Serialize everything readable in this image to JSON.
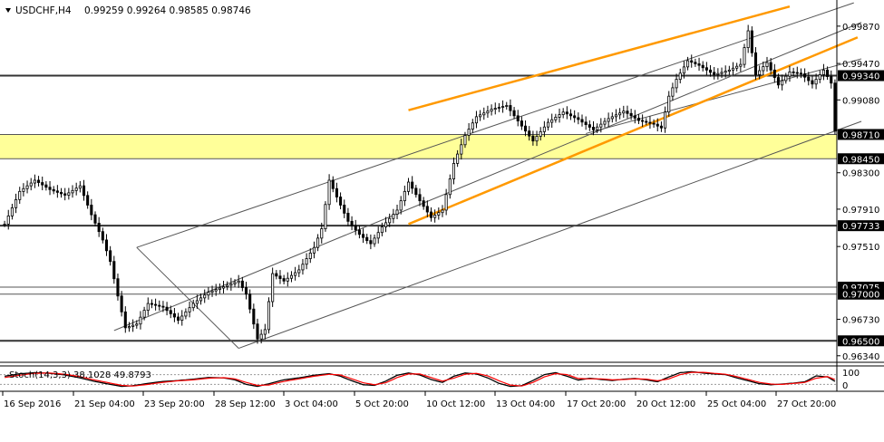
{
  "header": {
    "dropdown_icon": "triangle-down-icon",
    "title": "USDCHF,H4",
    "ohlc": "0.99259 0.99264 0.98585 0.98746"
  },
  "indicator": {
    "title": "Stoch(14,3,3) 38.1028 49.8793",
    "levels": [
      "100",
      "0"
    ],
    "colors": {
      "main": "#000000",
      "signal": "#ff0000"
    }
  },
  "colors": {
    "accent_channel": "#ff9900",
    "zone_fill": "#ffff99",
    "bull_candle": "#ffffff",
    "bear_candle": "#000000",
    "level_line": "#333333"
  },
  "chart_data": {
    "type": "candlestick",
    "symbol": "USDCHF",
    "timeframe": "H4",
    "ylim": [
      0.9627,
      1.0015
    ],
    "y_ticks": [
      {
        "label": "0.99870",
        "value": 0.9987
      },
      {
        "label": "0.99470",
        "value": 0.9947
      },
      {
        "label": "0.99080",
        "value": 0.9908
      },
      {
        "label": "0.98300",
        "value": 0.983
      },
      {
        "label": "0.97910",
        "value": 0.9791
      },
      {
        "label": "0.97510",
        "value": 0.9751
      },
      {
        "label": "0.96730",
        "value": 0.9673
      },
      {
        "label": "0.96340",
        "value": 0.9634
      }
    ],
    "x_ticks": [
      "16 Sep 2016",
      "21 Sep 04:00",
      "23 Sep 20:00",
      "28 Sep 12:00",
      "3 Oct 04:00",
      "5 Oct 20:00",
      "10 Oct 12:00",
      "13 Oct 04:00",
      "17 Oct 20:00",
      "20 Oct 12:00",
      "25 Oct 04:00",
      "27 Oct 20:00"
    ],
    "horizontal_levels": [
      {
        "label": "0.99340",
        "value": 0.9934,
        "weight": "thick"
      },
      {
        "label": "0.98710",
        "value": 0.9871,
        "weight": "thin"
      },
      {
        "label": "0.98450",
        "value": 0.9845,
        "weight": "thin"
      },
      {
        "label": "0.97733",
        "value": 0.97733,
        "weight": "thick"
      },
      {
        "label": "0.97075",
        "value": 0.97075,
        "weight": "thin"
      },
      {
        "label": "0.97000",
        "value": 0.97,
        "weight": "thin"
      },
      {
        "label": "0.96500",
        "value": 0.965,
        "weight": "thick"
      }
    ],
    "zone": {
      "from": 0.9845,
      "to": 0.9871
    },
    "last_close": 0.98746,
    "price_path": [
      [
        0,
        0.9775
      ],
      [
        4,
        0.981
      ],
      [
        8,
        0.9822
      ],
      [
        12,
        0.9812
      ],
      [
        16,
        0.9806
      ],
      [
        20,
        0.9816
      ],
      [
        23,
        0.9785
      ],
      [
        26,
        0.9758
      ],
      [
        28,
        0.9735
      ],
      [
        30,
        0.9698
      ],
      [
        32,
        0.9664
      ],
      [
        35,
        0.9668
      ],
      [
        38,
        0.969
      ],
      [
        42,
        0.9686
      ],
      [
        46,
        0.9672
      ],
      [
        50,
        0.969
      ],
      [
        54,
        0.9702
      ],
      [
        58,
        0.9708
      ],
      [
        62,
        0.9714
      ],
      [
        64,
        0.97
      ],
      [
        66,
        0.9668
      ],
      [
        67,
        0.9652
      ],
      [
        69,
        0.9662
      ],
      [
        71,
        0.9722
      ],
      [
        74,
        0.9714
      ],
      [
        78,
        0.9726
      ],
      [
        82,
        0.975
      ],
      [
        84,
        0.977
      ],
      [
        86,
        0.9822
      ],
      [
        88,
        0.9804
      ],
      [
        91,
        0.9778
      ],
      [
        94,
        0.9764
      ],
      [
        97,
        0.9754
      ],
      [
        100,
        0.9772
      ],
      [
        104,
        0.979
      ],
      [
        107,
        0.982
      ],
      [
        110,
        0.98
      ],
      [
        113,
        0.9782
      ],
      [
        116,
        0.979
      ],
      [
        119,
        0.984
      ],
      [
        122,
        0.987
      ],
      [
        125,
        0.989
      ],
      [
        129,
        0.9898
      ],
      [
        133,
        0.9902
      ],
      [
        137,
        0.988
      ],
      [
        140,
        0.9864
      ],
      [
        144,
        0.9884
      ],
      [
        148,
        0.9895
      ],
      [
        152,
        0.9887
      ],
      [
        156,
        0.9876
      ],
      [
        160,
        0.9888
      ],
      [
        164,
        0.9896
      ],
      [
        168,
        0.9886
      ],
      [
        172,
        0.9882
      ],
      [
        174,
        0.9878
      ],
      [
        176,
        0.9912
      ],
      [
        178,
        0.993
      ],
      [
        181,
        0.995
      ],
      [
        184,
        0.9945
      ],
      [
        188,
        0.9935
      ],
      [
        192,
        0.994
      ],
      [
        195,
        0.9946
      ],
      [
        197,
        0.9982
      ],
      [
        199,
        0.9935
      ],
      [
        202,
        0.9948
      ],
      [
        205,
        0.9924
      ],
      [
        208,
        0.9938
      ],
      [
        211,
        0.9936
      ],
      [
        214,
        0.9925
      ],
      [
        217,
        0.994
      ],
      [
        219,
        0.9926
      ],
      [
        220,
        0.98746
      ]
    ],
    "stochastic_main": [
      [
        0,
        70
      ],
      [
        4,
        85
      ],
      [
        8,
        92
      ],
      [
        12,
        88
      ],
      [
        16,
        78
      ],
      [
        20,
        60
      ],
      [
        24,
        38
      ],
      [
        28,
        20
      ],
      [
        31,
        8
      ],
      [
        34,
        12
      ],
      [
        38,
        26
      ],
      [
        42,
        38
      ],
      [
        46,
        44
      ],
      [
        50,
        52
      ],
      [
        54,
        62
      ],
      [
        58,
        60
      ],
      [
        61,
        48
      ],
      [
        64,
        20
      ],
      [
        67,
        8
      ],
      [
        70,
        24
      ],
      [
        74,
        48
      ],
      [
        78,
        60
      ],
      [
        82,
        76
      ],
      [
        86,
        86
      ],
      [
        89,
        70
      ],
      [
        92,
        42
      ],
      [
        95,
        18
      ],
      [
        98,
        14
      ],
      [
        101,
        40
      ],
      [
        104,
        76
      ],
      [
        107,
        90
      ],
      [
        110,
        78
      ],
      [
        113,
        50
      ],
      [
        116,
        32
      ],
      [
        119,
        70
      ],
      [
        122,
        90
      ],
      [
        125,
        84
      ],
      [
        128,
        60
      ],
      [
        131,
        26
      ],
      [
        134,
        8
      ],
      [
        137,
        12
      ],
      [
        140,
        44
      ],
      [
        143,
        80
      ],
      [
        146,
        92
      ],
      [
        149,
        70
      ],
      [
        152,
        46
      ],
      [
        155,
        58
      ],
      [
        158,
        50
      ],
      [
        161,
        44
      ],
      [
        164,
        52
      ],
      [
        167,
        56
      ],
      [
        170,
        48
      ],
      [
        173,
        36
      ],
      [
        176,
        66
      ],
      [
        179,
        92
      ],
      [
        182,
        98
      ],
      [
        185,
        90
      ],
      [
        188,
        84
      ],
      [
        191,
        80
      ],
      [
        194,
        60
      ],
      [
        197,
        42
      ],
      [
        200,
        24
      ],
      [
        203,
        18
      ],
      [
        206,
        22
      ],
      [
        209,
        28
      ],
      [
        212,
        36
      ],
      [
        215,
        72
      ],
      [
        218,
        66
      ],
      [
        220,
        38.1
      ]
    ],
    "stochastic_signal": [
      [
        0,
        62
      ],
      [
        4,
        76
      ],
      [
        8,
        88
      ],
      [
        12,
        90
      ],
      [
        16,
        82
      ],
      [
        20,
        68
      ],
      [
        24,
        46
      ],
      [
        28,
        28
      ],
      [
        31,
        14
      ],
      [
        34,
        10
      ],
      [
        38,
        20
      ],
      [
        42,
        33
      ],
      [
        46,
        42
      ],
      [
        50,
        48
      ],
      [
        54,
        58
      ],
      [
        58,
        61
      ],
      [
        61,
        54
      ],
      [
        64,
        32
      ],
      [
        67,
        14
      ],
      [
        70,
        16
      ],
      [
        74,
        38
      ],
      [
        78,
        54
      ],
      [
        82,
        70
      ],
      [
        86,
        82
      ],
      [
        89,
        78
      ],
      [
        92,
        54
      ],
      [
        95,
        30
      ],
      [
        98,
        18
      ],
      [
        101,
        30
      ],
      [
        104,
        62
      ],
      [
        107,
        84
      ],
      [
        110,
        84
      ],
      [
        113,
        62
      ],
      [
        116,
        40
      ],
      [
        119,
        58
      ],
      [
        122,
        82
      ],
      [
        125,
        88
      ],
      [
        128,
        72
      ],
      [
        131,
        42
      ],
      [
        134,
        16
      ],
      [
        137,
        10
      ],
      [
        140,
        32
      ],
      [
        143,
        66
      ],
      [
        146,
        86
      ],
      [
        149,
        80
      ],
      [
        152,
        56
      ],
      [
        155,
        54
      ],
      [
        158,
        54
      ],
      [
        161,
        48
      ],
      [
        164,
        50
      ],
      [
        167,
        54
      ],
      [
        170,
        52
      ],
      [
        173,
        42
      ],
      [
        176,
        54
      ],
      [
        179,
        80
      ],
      [
        182,
        94
      ],
      [
        185,
        94
      ],
      [
        188,
        88
      ],
      [
        191,
        82
      ],
      [
        194,
        68
      ],
      [
        197,
        50
      ],
      [
        200,
        32
      ],
      [
        203,
        22
      ],
      [
        206,
        20
      ],
      [
        209,
        26
      ],
      [
        212,
        32
      ],
      [
        215,
        58
      ],
      [
        218,
        68
      ],
      [
        220,
        49.9
      ]
    ]
  }
}
